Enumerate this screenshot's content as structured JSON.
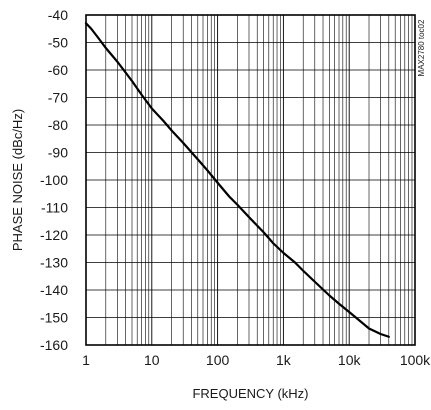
{
  "chart_data": {
    "type": "line",
    "title": "",
    "xlabel": "FREQUENCY (kHz)",
    "ylabel": "PHASE NOISE (dBc/Hz)",
    "annotation": "MAX2780 toc02",
    "x_scale": "log",
    "xlim": [
      1,
      100000
    ],
    "ylim": [
      -160,
      -40
    ],
    "grid": true,
    "legend": "none",
    "line_color": "#000000",
    "x_ticks": [
      {
        "value": 1,
        "label": "1"
      },
      {
        "value": 10,
        "label": "10"
      },
      {
        "value": 100,
        "label": "100"
      },
      {
        "value": 1000,
        "label": "1k"
      },
      {
        "value": 10000,
        "label": "10k"
      },
      {
        "value": 100000,
        "label": "100k"
      }
    ],
    "y_ticks": [
      {
        "value": -40,
        "label": "-40"
      },
      {
        "value": -50,
        "label": "-50"
      },
      {
        "value": -60,
        "label": "-60"
      },
      {
        "value": -70,
        "label": "-70"
      },
      {
        "value": -80,
        "label": "-80"
      },
      {
        "value": -90,
        "label": "-90"
      },
      {
        "value": -100,
        "label": "-100"
      },
      {
        "value": -110,
        "label": "-110"
      },
      {
        "value": -120,
        "label": "-120"
      },
      {
        "value": -130,
        "label": "-130"
      },
      {
        "value": -140,
        "label": "-140"
      },
      {
        "value": -150,
        "label": "-150"
      },
      {
        "value": -160,
        "label": "-160"
      }
    ],
    "series": [
      {
        "x": [
          1,
          1.2,
          1.5,
          2,
          3,
          5,
          7,
          10,
          15,
          20,
          30,
          50,
          70,
          100,
          150,
          200,
          300,
          500,
          700,
          1000,
          1500,
          2000,
          3000,
          5000,
          7000,
          10000,
          15000,
          20000,
          30000,
          40000
        ],
        "y": [
          -43,
          -45,
          -48,
          -52,
          -57,
          -64,
          -69,
          -74,
          -78.5,
          -82,
          -86.5,
          -92.5,
          -96.5,
          -101,
          -106,
          -109,
          -113.5,
          -119,
          -123,
          -126.5,
          -130,
          -133,
          -137,
          -142,
          -145,
          -148,
          -151.5,
          -154,
          -156,
          -157
        ]
      }
    ]
  }
}
